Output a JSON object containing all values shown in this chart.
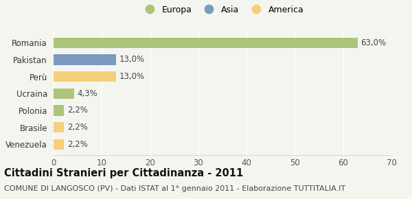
{
  "categories": [
    "Romania",
    "Pakistan",
    "Perù",
    "Ucraina",
    "Polonia",
    "Brasile",
    "Venezuela"
  ],
  "values": [
    63.0,
    13.0,
    13.0,
    4.3,
    2.2,
    2.2,
    2.2
  ],
  "labels": [
    "63,0%",
    "13,0%",
    "13,0%",
    "4,3%",
    "2,2%",
    "2,2%",
    "2,2%"
  ],
  "colors": [
    "#adc57a",
    "#7a9bbf",
    "#f5cf7a",
    "#adc57a",
    "#adc57a",
    "#f5cf7a",
    "#f5cf7a"
  ],
  "legend_labels": [
    "Europa",
    "Asia",
    "America"
  ],
  "legend_colors": [
    "#adc57a",
    "#7a9bbf",
    "#f5cf7a"
  ],
  "xlim": [
    0,
    70
  ],
  "xticks": [
    0,
    10,
    20,
    30,
    40,
    50,
    60,
    70
  ],
  "title": "Cittadini Stranieri per Cittadinanza - 2011",
  "subtitle": "COMUNE DI LANGOSCO (PV) - Dati ISTAT al 1° gennaio 2011 - Elaborazione TUTTITALIA.IT",
  "background_color": "#f5f5f0",
  "grid_color": "#ffffff",
  "bar_label_fontsize": 8.5,
  "axis_label_fontsize": 8.5,
  "title_fontsize": 10.5,
  "subtitle_fontsize": 8.0,
  "bar_height": 0.62
}
